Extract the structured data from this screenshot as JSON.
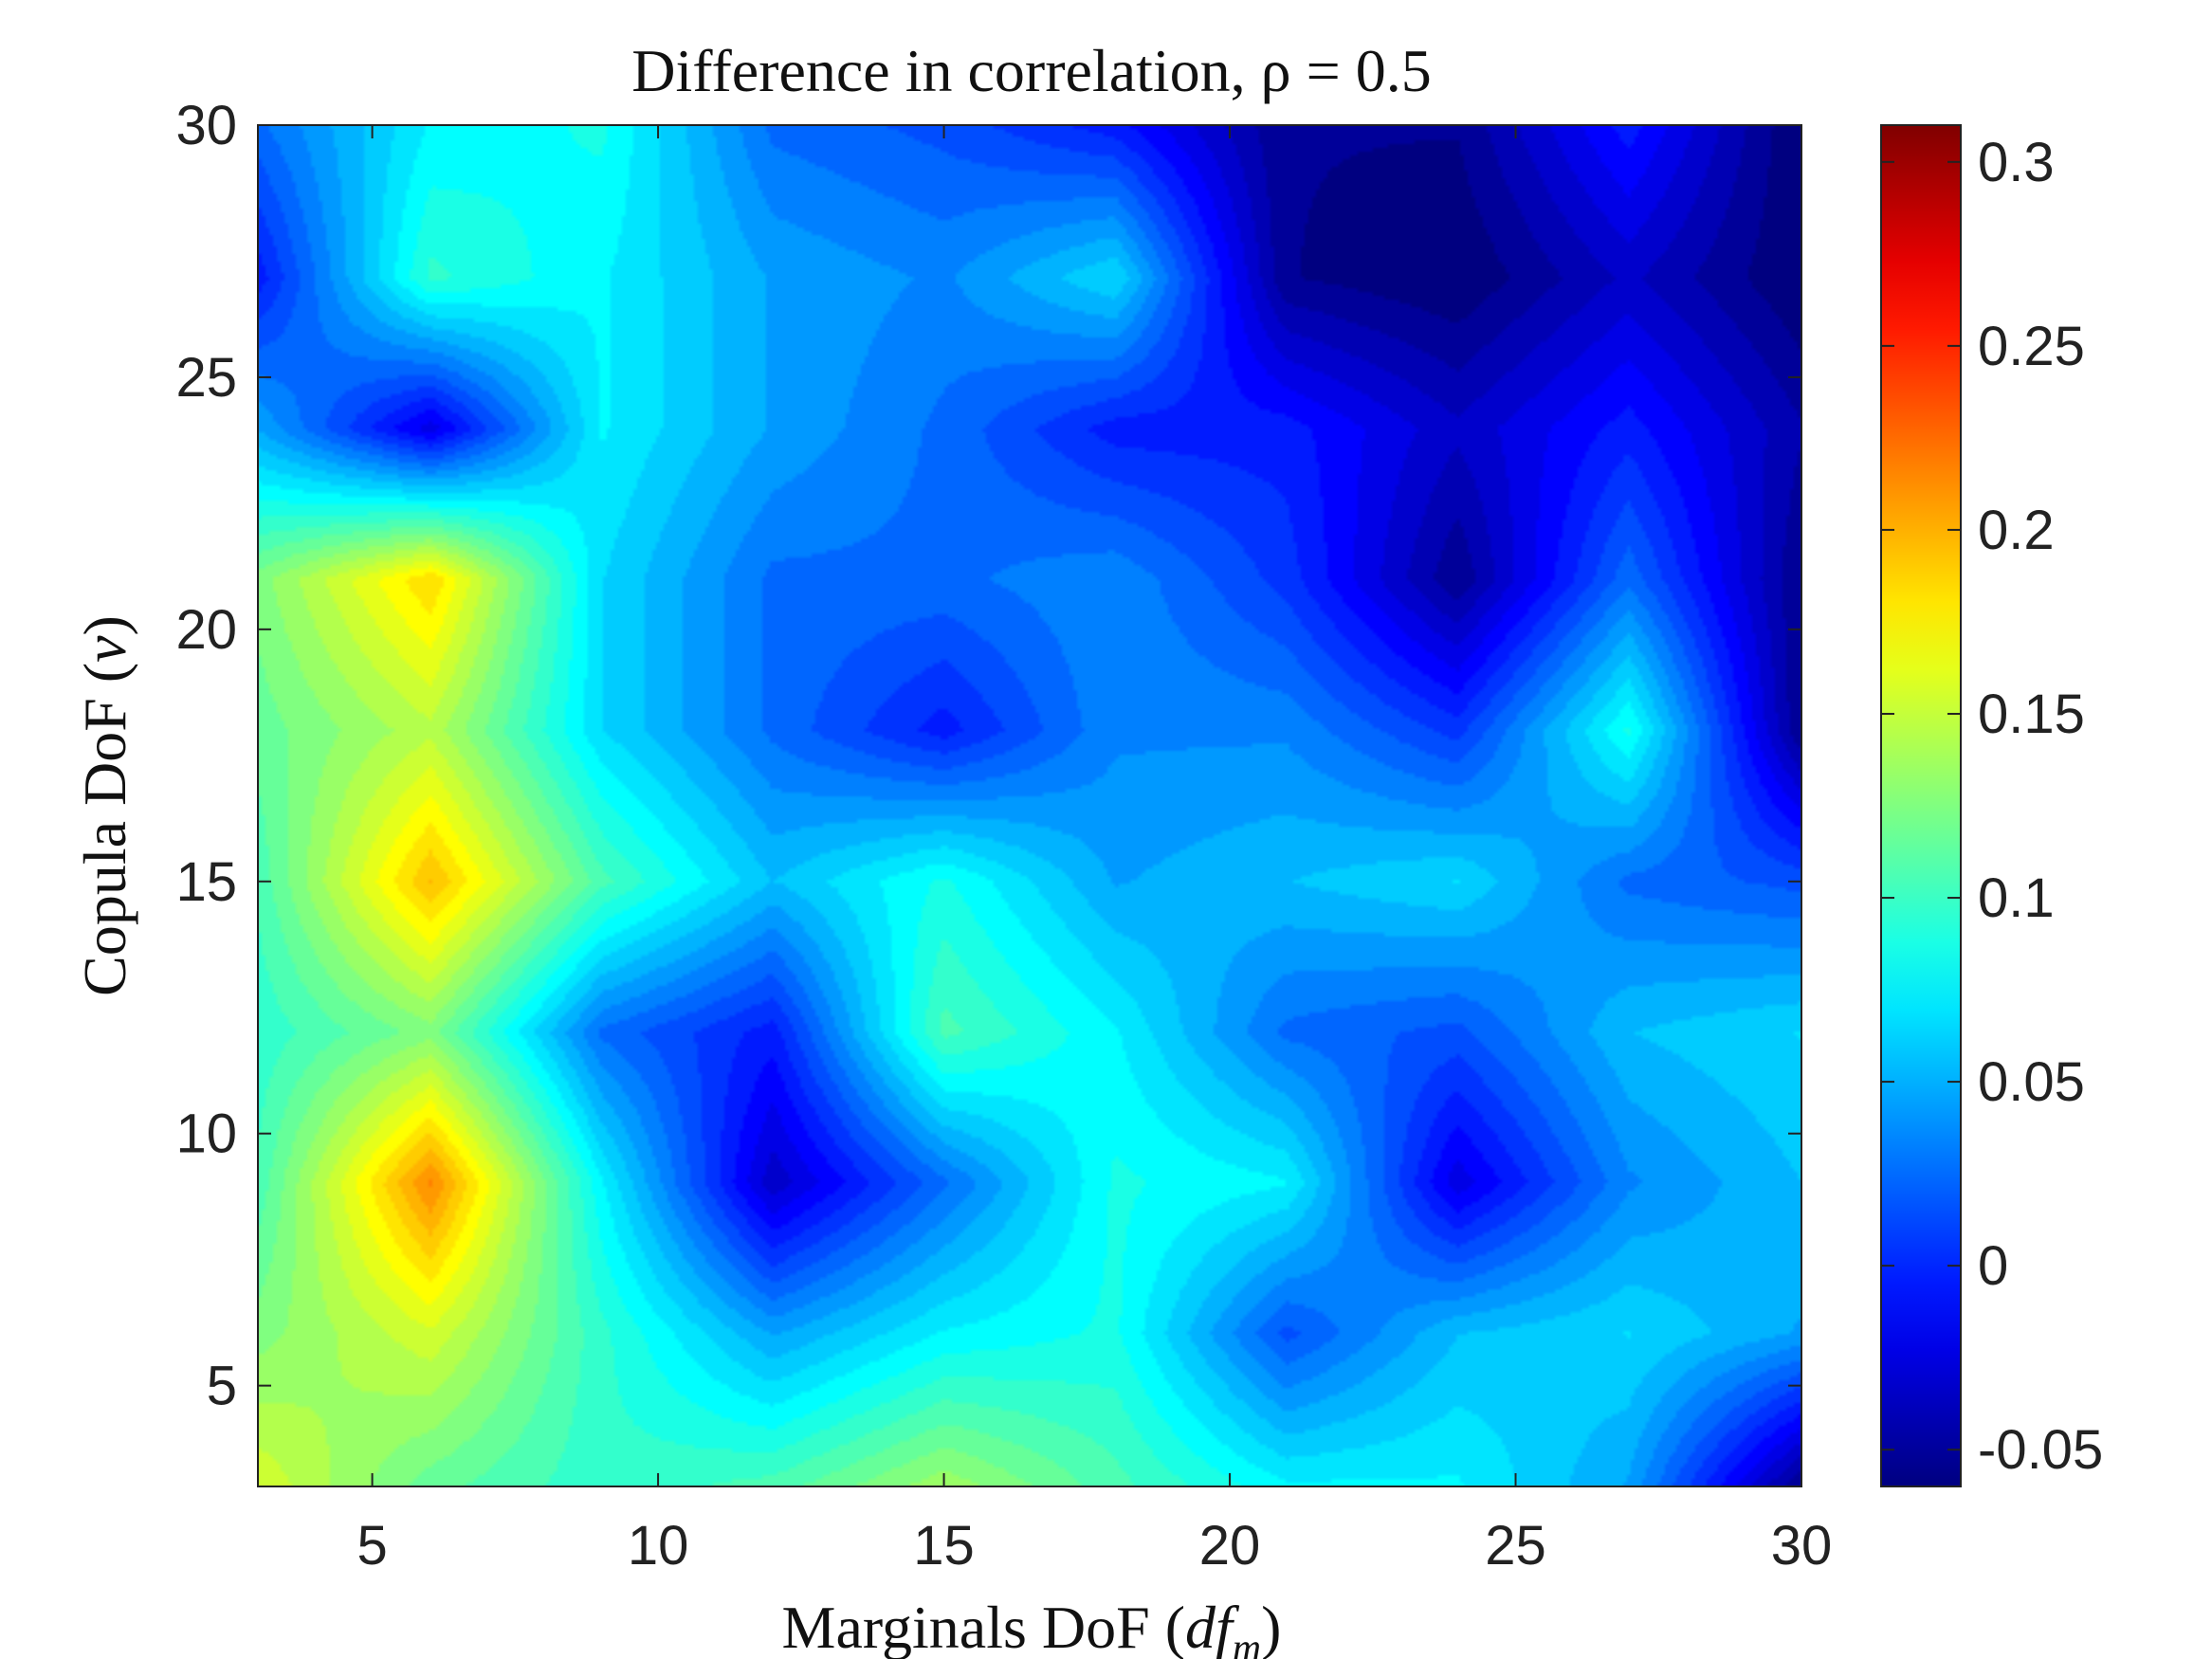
{
  "chart_data": {
    "type": "heatmap",
    "title": "Difference in correlation, ρ = 0.5",
    "xlabel": "Marginals DoF (df_m)",
    "ylabel": "Copula DoF (ν)",
    "xlim": [
      3,
      30
    ],
    "ylim": [
      3,
      30
    ],
    "x_ticks": [
      "5",
      "10",
      "15",
      "20",
      "25",
      "30"
    ],
    "y_ticks": [
      "5",
      "10",
      "15",
      "20",
      "25",
      "30"
    ],
    "colorbar": {
      "colormap": "jet",
      "range": [
        -0.06,
        0.31
      ],
      "ticks": [
        "0.3",
        "0.25",
        "0.2",
        "0.15",
        "0.1",
        "0.05",
        "0",
        "-0.05"
      ]
    },
    "x": [
      3,
      6,
      9,
      12,
      15,
      18,
      21,
      24,
      27,
      30
    ],
    "y": [
      3,
      6,
      9,
      12,
      15,
      18,
      21,
      24,
      27,
      30
    ],
    "values": [
      [
        0.16,
        0.12,
        0.1,
        0.11,
        0.14,
        0.11,
        0.08,
        0.08,
        0.05,
        -0.05
      ],
      [
        0.13,
        0.16,
        0.1,
        0.05,
        0.08,
        0.09,
        0.02,
        0.06,
        0.07,
        0.05
      ],
      [
        0.11,
        0.22,
        0.08,
        -0.03,
        0.03,
        0.09,
        0.08,
        -0.02,
        0.04,
        0.06
      ],
      [
        0.1,
        0.13,
        0.03,
        0.0,
        0.11,
        0.08,
        0.03,
        0.02,
        0.06,
        0.07
      ],
      [
        0.11,
        0.2,
        0.11,
        0.06,
        0.09,
        0.05,
        0.06,
        0.07,
        0.03,
        0.02
      ],
      [
        0.12,
        0.15,
        0.07,
        0.03,
        0.0,
        0.04,
        0.04,
        0.01,
        0.09,
        -0.05
      ],
      [
        0.13,
        0.19,
        0.07,
        0.03,
        0.03,
        0.04,
        0.01,
        -0.05,
        0.03,
        -0.05
      ],
      [
        0.05,
        -0.02,
        0.08,
        0.05,
        0.03,
        0.0,
        0.0,
        -0.03,
        0.0,
        -0.04
      ],
      [
        0.0,
        0.1,
        0.08,
        0.05,
        0.04,
        0.07,
        -0.05,
        -0.06,
        -0.03,
        -0.06
      ],
      [
        0.03,
        0.08,
        0.09,
        0.03,
        0.02,
        0.0,
        -0.05,
        -0.05,
        0.0,
        -0.06
      ]
    ]
  }
}
